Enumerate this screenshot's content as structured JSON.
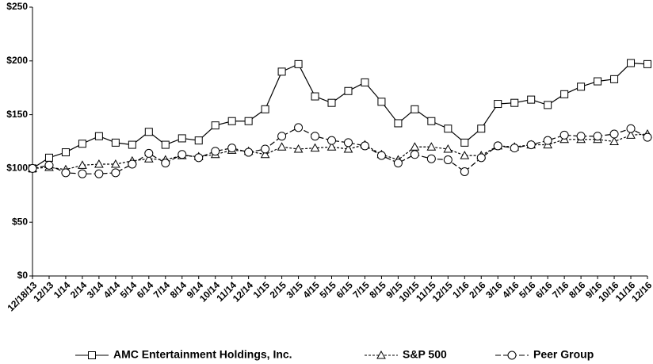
{
  "chart_data": {
    "type": "line",
    "categories": [
      "12/18/13",
      "12/13",
      "1/14",
      "2/14",
      "3/14",
      "4/14",
      "5/14",
      "6/14",
      "7/14",
      "8/14",
      "9/14",
      "10/14",
      "11/14",
      "12/14",
      "1/15",
      "2/15",
      "3/15",
      "4/15",
      "5/15",
      "6/15",
      "7/15",
      "8/15",
      "9/15",
      "10/15",
      "11/15",
      "12/15",
      "1/16",
      "2/16",
      "3/16",
      "4/16",
      "5/16",
      "6/16",
      "7/16",
      "8/16",
      "9/16",
      "10/16",
      "11/16",
      "12/16"
    ],
    "series": [
      {
        "name": "AMC Entertainment Holdings, Inc.",
        "color": "#000000",
        "marker": "square",
        "dash": "solid",
        "values": [
          100,
          110,
          115,
          123,
          130,
          124,
          122,
          134,
          122,
          128,
          126,
          140,
          144,
          144,
          155,
          190,
          197,
          167,
          161,
          172,
          180,
          162,
          142,
          155,
          144,
          137,
          124,
          137,
          160,
          161,
          164,
          159,
          169,
          176,
          181,
          183,
          198,
          197
        ]
      },
      {
        "name": "S&P 500",
        "color": "#000000",
        "marker": "triangle",
        "dash": "short",
        "values": [
          100,
          101,
          99,
          103,
          104,
          104,
          107,
          109,
          108,
          112,
          111,
          113,
          117,
          116,
          113,
          120,
          118,
          119,
          120,
          118,
          122,
          113,
          108,
          120,
          120,
          118,
          112,
          112,
          121,
          120,
          122,
          122,
          127,
          127,
          127,
          125,
          131,
          132
        ]
      },
      {
        "name": "Peer Group",
        "color": "#000000",
        "marker": "circle",
        "dash": "long",
        "values": [
          100,
          103,
          96,
          95,
          95,
          96,
          104,
          114,
          105,
          113,
          110,
          116,
          119,
          115,
          118,
          130,
          138,
          130,
          126,
          124,
          121,
          112,
          105,
          113,
          109,
          108,
          97,
          110,
          121,
          119,
          122,
          126,
          131,
          130,
          130,
          132,
          137,
          129
        ]
      }
    ],
    "ylim": [
      0,
      250
    ],
    "yticks": [
      {
        "value": 0,
        "label": "$0"
      },
      {
        "value": 50,
        "label": "$50"
      },
      {
        "value": 100,
        "label": "$100"
      },
      {
        "value": 150,
        "label": "$150"
      },
      {
        "value": 200,
        "label": "$200"
      },
      {
        "value": 250,
        "label": "$250"
      }
    ],
    "legend": "bottom"
  }
}
